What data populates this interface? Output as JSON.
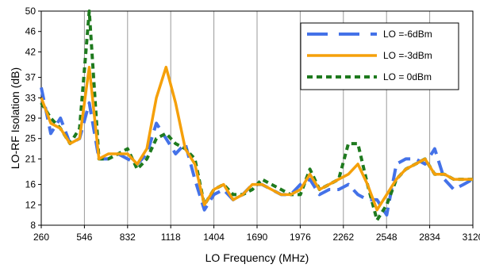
{
  "chart_data": {
    "type": "line",
    "title": "",
    "xlabel": "LO Frequency (MHz)",
    "ylabel": "LO-RF Isolation (dB)",
    "xlim": [
      260,
      3120
    ],
    "ylim": [
      8,
      50
    ],
    "x_ticks": [
      "260",
      "546",
      "832",
      "1118",
      "1404",
      "1690",
      "1976",
      "2262",
      "2548",
      "2834",
      "3120"
    ],
    "y_ticks": [
      "8",
      "12",
      "16",
      "21",
      "25",
      "29",
      "33",
      "37",
      "42",
      "46",
      "50"
    ],
    "grid": "vertical",
    "legend_position": "top-right",
    "series": [
      {
        "name": "LO =-6dBm",
        "color": "#4472E8",
        "style": "long-dash",
        "x": [
          260,
          323,
          387,
          451,
          514,
          578,
          642,
          705,
          769,
          832,
          896,
          960,
          1023,
          1087,
          1150,
          1214,
          1278,
          1341,
          1404,
          1468,
          1531,
          1595,
          1659,
          1722,
          1786,
          1850,
          1913,
          1977,
          2040,
          2104,
          2168,
          2231,
          2295,
          2358,
          2422,
          2485,
          2549,
          2613,
          2676,
          2740,
          2803,
          2867,
          2931,
          2994,
          3058,
          3120
        ],
        "y": [
          35,
          26,
          29,
          24,
          25,
          32,
          21,
          21,
          22,
          21,
          20,
          22,
          28,
          25,
          22,
          24,
          17,
          11,
          14,
          15,
          13,
          14,
          16,
          16,
          15,
          14,
          14,
          16,
          17,
          14,
          15,
          15,
          16,
          14,
          13,
          13,
          10,
          20,
          21,
          21,
          20,
          23,
          17,
          15,
          16,
          17
        ]
      },
      {
        "name": "LO =-3dBm",
        "color": "#F5A00A",
        "style": "solid",
        "x": [
          260,
          323,
          387,
          451,
          514,
          578,
          642,
          705,
          769,
          832,
          896,
          960,
          1023,
          1087,
          1150,
          1214,
          1278,
          1341,
          1404,
          1468,
          1531,
          1595,
          1659,
          1722,
          1786,
          1850,
          1913,
          1977,
          2040,
          2104,
          2168,
          2231,
          2295,
          2358,
          2422,
          2485,
          2549,
          2613,
          2676,
          2740,
          2803,
          2867,
          2931,
          2994,
          3058,
          3120
        ],
        "y": [
          33,
          28,
          27,
          24,
          25,
          39,
          21,
          22,
          22,
          22,
          20,
          23,
          33,
          39,
          32,
          23,
          20,
          12,
          15,
          16,
          13,
          14,
          16,
          16,
          15,
          14,
          14,
          15,
          18,
          15,
          16,
          17,
          18,
          20,
          16,
          11,
          14,
          17,
          19,
          20,
          21,
          18,
          18,
          17,
          17,
          17
        ]
      },
      {
        "name": "LO = 0dBm",
        "color": "#1E7A1E",
        "style": "dotted",
        "x": [
          260,
          323,
          387,
          451,
          514,
          578,
          642,
          705,
          769,
          832,
          896,
          960,
          1023,
          1087,
          1150,
          1214,
          1278,
          1341,
          1404,
          1468,
          1531,
          1595,
          1659,
          1722,
          1786,
          1850,
          1913,
          1977,
          2040,
          2104,
          2168,
          2231,
          2295,
          2358,
          2422,
          2485,
          2549,
          2613,
          2676,
          2740,
          2803,
          2867,
          2931,
          2994,
          3058,
          3120
        ],
        "y": [
          32,
          29,
          27,
          24,
          27,
          50,
          21,
          21,
          22,
          23,
          19,
          21,
          25,
          26,
          24,
          23,
          21,
          12,
          15,
          16,
          14,
          14,
          15,
          17,
          16,
          15,
          14,
          14,
          19,
          15,
          16,
          17,
          24,
          24,
          16,
          9,
          12,
          17,
          19,
          20,
          21,
          18,
          18,
          17,
          17,
          17
        ]
      }
    ]
  }
}
